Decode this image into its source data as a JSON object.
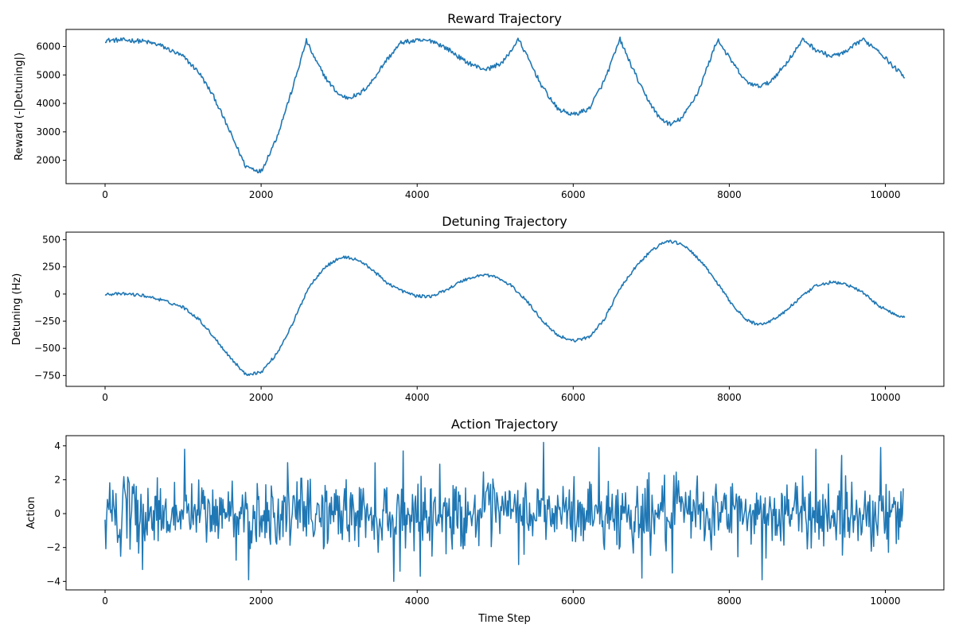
{
  "chart_data": [
    {
      "type": "line",
      "title": "Reward Trajectory",
      "xlabel": "",
      "ylabel": "Reward (-|Detuning|)",
      "xlim": [
        -500,
        10750
      ],
      "ylim": [
        1180,
        6600
      ],
      "xticks": [
        0,
        2000,
        4000,
        6000,
        8000,
        10000
      ],
      "yticks": [
        2000,
        3000,
        4000,
        5000,
        6000
      ],
      "noise": 80,
      "series": [
        {
          "color": "#1f77b4",
          "x": [
            0,
            300,
            500,
            700,
            1000,
            1200,
            1400,
            1600,
            1800,
            2000,
            2200,
            2400,
            2580,
            2700,
            2850,
            3000,
            3100,
            3250,
            3400,
            3600,
            3800,
            4000,
            4200,
            4400,
            4600,
            4800,
            4900,
            5100,
            5300,
            5400,
            5600,
            5800,
            6000,
            6200,
            6400,
            6600,
            6700,
            6900,
            7100,
            7250,
            7400,
            7600,
            7850,
            8000,
            8200,
            8350,
            8500,
            8700,
            8950,
            9100,
            9300,
            9500,
            9700,
            9900,
            10100,
            10250
          ],
          "values": [
            6220,
            6220,
            6180,
            6050,
            5650,
            5100,
            4200,
            3000,
            1800,
            1600,
            2800,
            4500,
            6200,
            5500,
            4800,
            4300,
            4200,
            4300,
            4700,
            5500,
            6150,
            6200,
            6200,
            5900,
            5500,
            5250,
            5200,
            5450,
            6250,
            5700,
            4600,
            3800,
            3600,
            3800,
            4800,
            6250,
            5600,
            4400,
            3500,
            3250,
            3500,
            4400,
            6250,
            5600,
            4800,
            4600,
            4700,
            5300,
            6250,
            5900,
            5650,
            5800,
            6250,
            5900,
            5300,
            4950
          ]
        }
      ]
    },
    {
      "type": "line",
      "title": "Detuning Trajectory",
      "xlabel": "",
      "ylabel": "Detuning (Hz)",
      "xlim": [
        -500,
        10750
      ],
      "ylim": [
        -850,
        570
      ],
      "xticks": [
        0,
        2000,
        4000,
        6000,
        8000,
        10000
      ],
      "yticks": [
        -750,
        -500,
        -250,
        0,
        250,
        500
      ],
      "noise": 14,
      "series": [
        {
          "color": "#1f77b4",
          "x": [
            0,
            300,
            500,
            700,
            1000,
            1200,
            1400,
            1600,
            1800,
            2000,
            2200,
            2400,
            2600,
            2800,
            3000,
            3100,
            3250,
            3400,
            3600,
            3800,
            4000,
            4200,
            4400,
            4600,
            4850,
            5000,
            5200,
            5400,
            5600,
            5800,
            6000,
            6200,
            6400,
            6600,
            6800,
            7000,
            7200,
            7400,
            7600,
            7800,
            8000,
            8200,
            8350,
            8500,
            8700,
            8900,
            9100,
            9300,
            9500,
            9700,
            9900,
            10100,
            10250
          ],
          "values": [
            0,
            0,
            -15,
            -50,
            -120,
            -230,
            -400,
            -580,
            -740,
            -720,
            -550,
            -280,
            50,
            240,
            330,
            340,
            310,
            240,
            110,
            30,
            -20,
            -20,
            50,
            130,
            180,
            160,
            80,
            -60,
            -240,
            -380,
            -430,
            -400,
            -230,
            50,
            250,
            400,
            490,
            460,
            330,
            150,
            -60,
            -230,
            -280,
            -260,
            -170,
            -40,
            70,
            110,
            90,
            20,
            -100,
            -180,
            -215
          ]
        }
      ]
    },
    {
      "type": "line",
      "title": "Action Trajectory",
      "xlabel": "Time Step",
      "ylabel": "Action",
      "xlim": [
        -500,
        10750
      ],
      "ylim": [
        -4.5,
        4.6
      ],
      "xticks": [
        0,
        2000,
        4000,
        6000,
        8000,
        10000
      ],
      "yticks": [
        -4,
        -2,
        0,
        2,
        4
      ],
      "noise": 1.0,
      "noise_type": "random",
      "series": [
        {
          "color": "#1f77b4",
          "x": [
            0,
            10230
          ],
          "values": [
            0,
            0
          ],
          "peaks": [
            [
              1020,
              3.8
            ],
            [
              1840,
              -3.9
            ],
            [
              3700,
              -4.0
            ],
            [
              3780,
              -3.4
            ],
            [
              3820,
              3.7
            ],
            [
              5620,
              4.2
            ],
            [
              6330,
              3.9
            ],
            [
              6880,
              -3.8
            ],
            [
              7270,
              -3.5
            ],
            [
              8420,
              -3.9
            ],
            [
              9940,
              3.9
            ],
            [
              9110,
              3.8
            ],
            [
              480,
              -3.3
            ]
          ]
        }
      ]
    }
  ]
}
